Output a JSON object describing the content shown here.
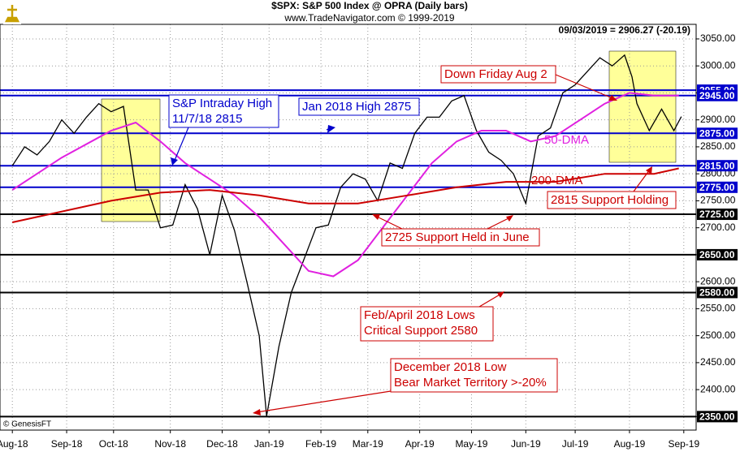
{
  "chart_data": {
    "type": "line",
    "title": "$SPX:  S&P 500 Index @ OPRA  (Daily bars)",
    "subtitle": "www.TradeNavigator.com © 1999-2019",
    "last_quote": "09/03/2019 = 2906.27 (-20.19)",
    "credit": "© GenesisFT",
    "xlim": [
      -5,
      277
    ],
    "xticks": [
      {
        "value": 0,
        "label": "Aug-18"
      },
      {
        "value": 22,
        "label": "Sep-18"
      },
      {
        "value": 41,
        "label": "Oct-18"
      },
      {
        "value": 64,
        "label": "Nov-18"
      },
      {
        "value": 85,
        "label": "Dec-18"
      },
      {
        "value": 104,
        "label": "Jan-19"
      },
      {
        "value": 125,
        "label": "Feb-19"
      },
      {
        "value": 144,
        "label": "Mar-19"
      },
      {
        "value": 165,
        "label": "Apr-19"
      },
      {
        "value": 186,
        "label": "May-19"
      },
      {
        "value": 208,
        "label": "Jun-19"
      },
      {
        "value": 228,
        "label": "Jul-19"
      },
      {
        "value": 250,
        "label": "Aug-19"
      },
      {
        "value": 272,
        "label": "Sep-19"
      }
    ],
    "ylim": [
      2325,
      3077
    ],
    "yticks": [
      {
        "value": 2350,
        "label": "2350.00"
      },
      {
        "value": 2400,
        "label": "2400.00"
      },
      {
        "value": 2450,
        "label": "2450.00"
      },
      {
        "value": 2500,
        "label": "2500.00"
      },
      {
        "value": 2550,
        "label": "2550.00"
      },
      {
        "value": 2600,
        "label": "2600.00"
      },
      {
        "value": 2650,
        "label": "2650.00"
      },
      {
        "value": 2700,
        "label": "2700.00"
      },
      {
        "value": 2750,
        "label": "2750.00"
      },
      {
        "value": 2800,
        "label": "2800.00"
      },
      {
        "value": 2850,
        "label": "2850.00"
      },
      {
        "value": 2900,
        "label": "2900.00"
      },
      {
        "value": 2950,
        "label": "2950.00"
      },
      {
        "value": 3000,
        "label": "3000.00"
      },
      {
        "value": 3050,
        "label": "3050.00"
      }
    ],
    "grid": true,
    "series": [
      {
        "color": "#000000",
        "x": [
          0,
          5,
          10,
          15,
          20,
          25,
          30,
          35,
          40,
          45,
          50,
          55,
          60,
          65,
          70,
          75,
          80,
          85,
          90,
          95,
          100,
          103,
          108,
          113,
          118,
          123,
          128,
          133,
          138,
          143,
          148,
          153,
          158,
          163,
          168,
          173,
          178,
          183,
          188,
          193,
          198,
          203,
          208,
          213,
          218,
          223,
          228,
          233,
          238,
          243,
          248,
          251,
          253,
          258,
          263,
          268,
          271
        ],
        "values": [
          2815,
          2850,
          2835,
          2860,
          2900,
          2875,
          2905,
          2930,
          2915,
          2925,
          2770,
          2770,
          2700,
          2705,
          2780,
          2735,
          2650,
          2760,
          2695,
          2600,
          2500,
          2351,
          2480,
          2580,
          2640,
          2700,
          2705,
          2775,
          2800,
          2790,
          2750,
          2820,
          2810,
          2875,
          2905,
          2905,
          2935,
          2945,
          2880,
          2840,
          2825,
          2800,
          2745,
          2870,
          2885,
          2950,
          2965,
          2990,
          3015,
          3000,
          3020,
          2980,
          2930,
          2880,
          2920,
          2880,
          2906
        ]
      },
      {
        "name": "50-DMA",
        "color": "#e020e0",
        "x": [
          0,
          20,
          40,
          50,
          60,
          70,
          80,
          90,
          100,
          110,
          120,
          130,
          140,
          150,
          160,
          170,
          180,
          190,
          200,
          210,
          220,
          230,
          240,
          250,
          260,
          270
        ],
        "values": [
          2770,
          2830,
          2880,
          2895,
          2860,
          2820,
          2790,
          2760,
          2720,
          2670,
          2620,
          2610,
          2640,
          2700,
          2760,
          2820,
          2860,
          2880,
          2880,
          2860,
          2870,
          2900,
          2930,
          2950,
          2945,
          2945
        ]
      },
      {
        "name": "200-DMA",
        "color": "#cc0000",
        "x": [
          0,
          40,
          60,
          80,
          100,
          120,
          140,
          160,
          180,
          200,
          220,
          240,
          260,
          270
        ],
        "values": [
          2710,
          2750,
          2765,
          2770,
          2760,
          2745,
          2745,
          2760,
          2775,
          2785,
          2785,
          2800,
          2800,
          2810
        ]
      }
    ],
    "levels": [
      {
        "value": 2955,
        "label": "2955.00",
        "color": "#0000cc"
      },
      {
        "value": 2945,
        "label": "2945.00",
        "color": "#0000cc"
      },
      {
        "value": 2875,
        "label": "2875.00",
        "color": "#0000cc"
      },
      {
        "value": 2815,
        "label": "2815.00",
        "color": "#0000cc"
      },
      {
        "value": 2775,
        "label": "2775.00",
        "color": "#0000cc"
      },
      {
        "value": 2725,
        "label": "2725.00",
        "color": "#000000"
      },
      {
        "value": 2650,
        "label": "2650.00",
        "color": "#000000"
      },
      {
        "value": 2580,
        "label": "2580.00",
        "color": "#000000"
      },
      {
        "value": 2350,
        "label": "2350.00",
        "color": "#000000"
      }
    ],
    "annotations": [
      [
        "S&P Intraday High",
        "11/7/18 2815"
      ],
      [
        "Jan 2018 High 2875"
      ],
      [
        "Down Friday Aug 2"
      ],
      [
        "50-DMA"
      ],
      [
        "200-DMA"
      ],
      [
        "2815 Support Holding"
      ],
      [
        "2725 Support Held in June"
      ],
      [
        "Feb/April 2018 Lows",
        "Critical Support 2580"
      ],
      [
        "December 2018 Low",
        "Bear Market Territory >-20%"
      ]
    ]
  }
}
